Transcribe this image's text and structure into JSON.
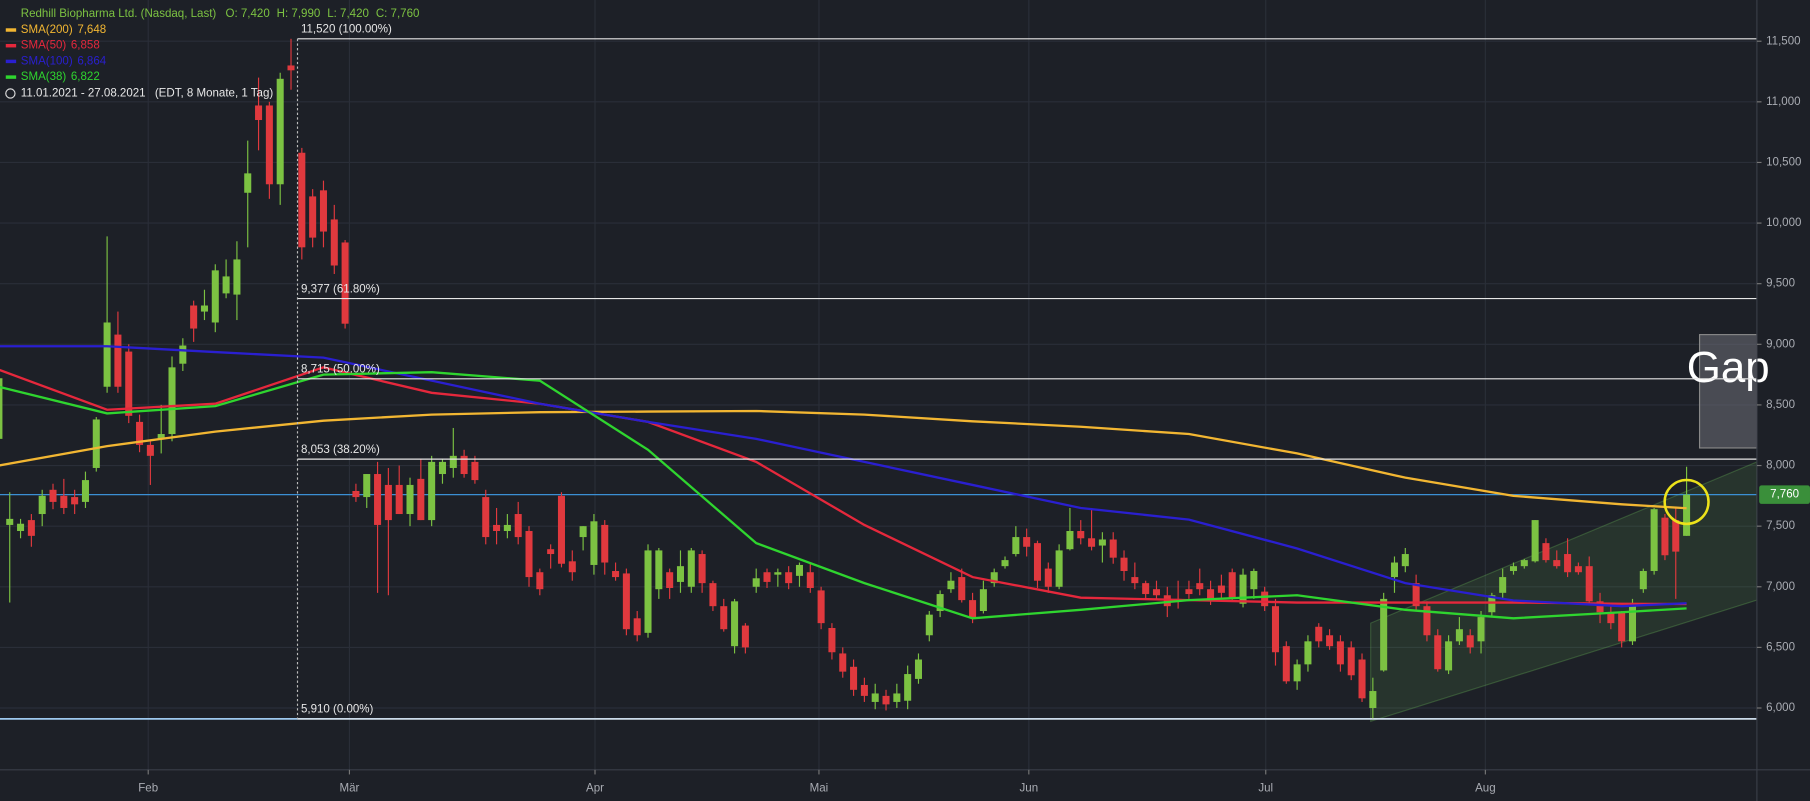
{
  "chart_data": {
    "type": "candlestick",
    "title": "Redhill Biopharma Ltd. (Nasdaq, Last)",
    "quote": [
      "O: 7,420",
      "H: 7,990",
      "L: 7,420",
      "C: 7,760"
    ],
    "date_range": "11.01.2021 - 27.08.2021",
    "range_note": "(EDT, 8 Monate, 1 Tag)",
    "up_color": "#7cc242",
    "down_color": "#e0393e",
    "categories": [
      null,
      null,
      null,
      null,
      null,
      null,
      null,
      null,
      null,
      null,
      null,
      null,
      null,
      null,
      null,
      null,
      null,
      null,
      null,
      null,
      null,
      null,
      null,
      null,
      null,
      null,
      null,
      null,
      null,
      null,
      null,
      null,
      null,
      null,
      null,
      null,
      null,
      null,
      null,
      null,
      null,
      null,
      null,
      null,
      null,
      null,
      null,
      null,
      null,
      null,
      null,
      null,
      null,
      null,
      null,
      null,
      null,
      null,
      null,
      null,
      null,
      null,
      null,
      null,
      null,
      null,
      null,
      null,
      null,
      null,
      null,
      null,
      null,
      null,
      null,
      null,
      null,
      null,
      null,
      null,
      null,
      null,
      null,
      null,
      null,
      null,
      null,
      null,
      null,
      null,
      null,
      null,
      null,
      null,
      null,
      null,
      null,
      null,
      null,
      null,
      null,
      null,
      null,
      null,
      null,
      null,
      null,
      null,
      null,
      null,
      null,
      null,
      null,
      null,
      null,
      null,
      null,
      null,
      null,
      null,
      null,
      null,
      null,
      null,
      null,
      null,
      null,
      null,
      null,
      null,
      null,
      null,
      null,
      null,
      null,
      null,
      null,
      null,
      null,
      null,
      null,
      null,
      null,
      null,
      null,
      null,
      null,
      null,
      null,
      null,
      null,
      null,
      null,
      null,
      null,
      null,
      null
    ],
    "open": [
      8220,
      7510,
      7460,
      7550,
      7600,
      7800,
      7750,
      7740,
      7700,
      7980,
      8650,
      9080,
      8940,
      8360,
      8170,
      8220,
      8260,
      8840,
      9320,
      9270,
      9180,
      9420,
      9410,
      10250,
      10970,
      10970,
      10320,
      11300,
      10580,
      10220,
      10270,
      10030,
      9840,
      7790,
      7740,
      7930,
      7840,
      7840,
      7600,
      7890,
      7550,
      7930,
      7980,
      8080,
      8030,
      7740,
      7510,
      7460,
      7600,
      7460,
      7120,
      7310,
      7750,
      7210,
      7410,
      7180,
      7510,
      7130,
      7110,
      6740,
      6620,
      6980,
      7120,
      7040,
      7000,
      7270,
      7030,
      6840,
      6510,
      6680,
      7000,
      7120,
      7100,
      7120,
      7090,
      7120,
      6970,
      6660,
      6450,
      6340,
      6190,
      6050,
      6100,
      6050,
      6060,
      6240,
      6600,
      6800,
      6980,
      7080,
      6890,
      6800,
      7030,
      7170,
      7270,
      7410,
      7360,
      7150,
      7000,
      7310,
      7460,
      7400,
      7340,
      7390,
      7240,
      7080,
      7030,
      6980,
      6930,
      6900,
      6980,
      7030,
      6980,
      7010,
      7120,
      6860,
      6980,
      6960,
      6840,
      6510,
      6220,
      6360,
      6670,
      6600,
      6550,
      6500,
      6400,
      6000,
      6310,
      7080,
      7170,
      7030,
      6840,
      6600,
      6310,
      6550,
      6600,
      6550,
      6790,
      6950,
      7130,
      7170,
      7210,
      7360,
      7220,
      7270,
      7170,
      7170,
      6880,
      6790,
      6790,
      6550,
      6980,
      7130,
      7570,
      7550,
      7420
    ],
    "high": [
      8780,
      7780,
      7560,
      7600,
      7800,
      7850,
      7890,
      7800,
      7950,
      8400,
      9890,
      9270,
      9000,
      8420,
      8200,
      8500,
      8900,
      9050,
      9360,
      9450,
      9660,
      9700,
      9850,
      10680,
      11200,
      11000,
      11240,
      11520,
      10620,
      10280,
      10350,
      10150,
      9860,
      7850,
      7930,
      8030,
      7980,
      8000,
      7900,
      8050,
      8080,
      8050,
      8310,
      8130,
      8080,
      7800,
      7650,
      7600,
      7700,
      7500,
      7150,
      7350,
      7780,
      7300,
      7500,
      7600,
      7550,
      7200,
      7150,
      6800,
      7350,
      7320,
      7150,
      7300,
      7320,
      7300,
      7050,
      6900,
      6900,
      6700,
      7150,
      7150,
      7150,
      7170,
      7200,
      7200,
      7000,
      6700,
      6500,
      6400,
      6250,
      6200,
      6150,
      6200,
      6350,
      6450,
      6800,
      6970,
      7120,
      7150,
      6950,
      7050,
      7150,
      7250,
      7500,
      7480,
      7380,
      7200,
      7350,
      7650,
      7550,
      7650,
      7450,
      7450,
      7300,
      7200,
      7050,
      7050,
      7000,
      7050,
      7050,
      7150,
      7050,
      7100,
      7150,
      7150,
      7150,
      7000,
      6900,
      6550,
      6400,
      6600,
      6700,
      6650,
      6600,
      6550,
      6450,
      6250,
      6950,
      7250,
      7320,
      7100,
      6880,
      6650,
      6600,
      6750,
      6650,
      6800,
      6950,
      7150,
      7200,
      7230,
      7550,
      7400,
      7300,
      7400,
      7200,
      7250,
      6950,
      6850,
      6800,
      6900,
      7150,
      7650,
      7600,
      7650,
      7990
    ],
    "low": [
      8150,
      6870,
      7400,
      7330,
      7500,
      7640,
      7600,
      7600,
      7650,
      7950,
      8600,
      8600,
      8350,
      8110,
      7840,
      8100,
      8200,
      8780,
      9020,
      9200,
      9100,
      9380,
      9200,
      9800,
      10600,
      10200,
      10150,
      11100,
      9700,
      9800,
      9800,
      9580,
      9130,
      7700,
      7650,
      6950,
      6930,
      7600,
      7500,
      7550,
      7500,
      7850,
      7900,
      7900,
      7850,
      7350,
      7350,
      7400,
      7350,
      7000,
      6930,
      7150,
      7160,
      7050,
      7300,
      7100,
      7100,
      7050,
      6600,
      6550,
      6580,
      6900,
      6900,
      6950,
      6950,
      6950,
      6800,
      6630,
      6450,
      6450,
      6950,
      6990,
      7000,
      6980,
      7000,
      6950,
      6650,
      6400,
      6250,
      6100,
      6050,
      5990,
      5980,
      6000,
      5990,
      6200,
      6550,
      6750,
      6950,
      6870,
      6700,
      6780,
      7000,
      7150,
      7250,
      7250,
      6990,
      6950,
      6980,
      7300,
      7350,
      7300,
      7200,
      7190,
      7050,
      6980,
      6900,
      6900,
      6750,
      6820,
      6900,
      6930,
      6850,
      6900,
      6880,
      6830,
      6900,
      6800,
      6350,
      6200,
      6150,
      6300,
      6500,
      6480,
      6300,
      6230,
      6050,
      5910,
      6300,
      6950,
      7120,
      6800,
      6550,
      6300,
      6280,
      6520,
      6450,
      6450,
      6750,
      6900,
      7100,
      7150,
      7200,
      7200,
      7150,
      7080,
      7100,
      6850,
      6700,
      6650,
      6500,
      6520,
      6950,
      7100,
      7220,
      6900,
      7420
    ],
    "close": [
      8720,
      7560,
      7520,
      7420,
      7750,
      7700,
      7650,
      7680,
      7880,
      8380,
      9180,
      8650,
      8410,
      8170,
      8080,
      8260,
      8810,
      8990,
      9130,
      9320,
      9610,
      9560,
      9700,
      10410,
      10850,
      10320,
      11190,
      11260,
      9800,
      9880,
      9930,
      9650,
      9170,
      7740,
      7930,
      7510,
      7550,
      7600,
      7840,
      7550,
      8030,
      8030,
      8080,
      7930,
      7880,
      7410,
      7460,
      7510,
      7410,
      7080,
      6980,
      7270,
      7190,
      7120,
      7500,
      7540,
      7200,
      7080,
      6650,
      6600,
      7300,
      7300,
      6990,
      7170,
      7300,
      7030,
      6840,
      6650,
      6880,
      6500,
      7070,
      7040,
      7120,
      7030,
      7180,
      6990,
      6700,
      6460,
      6300,
      6150,
      6100,
      6120,
      6030,
      6120,
      6280,
      6400,
      6770,
      6940,
      7050,
      6890,
      6740,
      6980,
      7120,
      7220,
      7410,
      7330,
      7050,
      7000,
      7300,
      7460,
      7400,
      7330,
      7390,
      7240,
      7130,
      7030,
      6940,
      6930,
      6840,
      6880,
      6940,
      6980,
      6890,
      6950,
      6900,
      7100,
      7130,
      6840,
      6460,
      6220,
      6360,
      6550,
      6550,
      6510,
      6360,
      6270,
      6080,
      6140,
      6900,
      7200,
      7270,
      6840,
      6600,
      6320,
      6550,
      6650,
      6500,
      6750,
      6930,
      7080,
      7170,
      7220,
      7550,
      7220,
      7170,
      7120,
      7120,
      6880,
      6790,
      6700,
      6550,
      6840,
      7130,
      7640,
      7260,
      7290,
      7760
    ],
    "series": [
      {
        "name": "SMA(200)",
        "legend_value": "7,648",
        "color": "#f2b632",
        "x": [
          0,
          10,
          20,
          30,
          40,
          50,
          60,
          70,
          80,
          90,
          100,
          110,
          120,
          130,
          140,
          150,
          156
        ],
        "values": [
          8000,
          8160,
          8280,
          8370,
          8420,
          8440,
          8445,
          8450,
          8420,
          8365,
          8320,
          8260,
          8100,
          7900,
          7750,
          7680,
          7648
        ]
      },
      {
        "name": "SMA(50)",
        "legend_value": "6,858",
        "color": "#e5283c",
        "x": [
          0,
          10,
          20,
          30,
          40,
          50,
          60,
          70,
          80,
          90,
          100,
          110,
          120,
          130,
          140,
          150,
          156
        ],
        "values": [
          8790,
          8460,
          8510,
          8810,
          8600,
          8510,
          8360,
          8030,
          7510,
          7080,
          6910,
          6890,
          6870,
          6870,
          6870,
          6860,
          6858
        ]
      },
      {
        "name": "SMA(100)",
        "legend_value": "6,864",
        "color": "#2a1fd0",
        "x": [
          0,
          10,
          20,
          30,
          40,
          50,
          60,
          70,
          80,
          90,
          100,
          110,
          120,
          130,
          140,
          150,
          156
        ],
        "values": [
          8984,
          8984,
          8936,
          8890,
          8700,
          8510,
          8360,
          8220,
          8030,
          7840,
          7650,
          7554,
          7316,
          7030,
          6887,
          6840,
          6864
        ]
      },
      {
        "name": "SMA(38)",
        "legend_value": "6,822",
        "color": "#2fd52f",
        "x": [
          0,
          10,
          20,
          30,
          40,
          50,
          60,
          70,
          80,
          90,
          100,
          110,
          120,
          130,
          140,
          150,
          156
        ],
        "values": [
          8650,
          8430,
          8490,
          8750,
          8770,
          8700,
          8130,
          7360,
          7030,
          6740,
          6810,
          6890,
          6930,
          6810,
          6740,
          6790,
          6822
        ]
      }
    ],
    "xlim": [
      0.1,
      162.5
    ],
    "xticks": [
      {
        "value": 13.8,
        "label": "Feb"
      },
      {
        "value": 32.4,
        "label": "Mär"
      },
      {
        "value": 55.1,
        "label": "Apr"
      },
      {
        "value": 75.8,
        "label": "Mai"
      },
      {
        "value": 95.2,
        "label": "Jun"
      },
      {
        "value": 117.1,
        "label": "Jul"
      },
      {
        "value": 137.4,
        "label": "Aug"
      }
    ],
    "ylim": [
      5490,
      11840
    ],
    "yticks": [
      {
        "value": 6000,
        "label": "6,000"
      },
      {
        "value": 6500,
        "label": "6,500"
      },
      {
        "value": 7000,
        "label": "7,000"
      },
      {
        "value": 7500,
        "label": "7,500"
      },
      {
        "value": 8000,
        "label": "8,000"
      },
      {
        "value": 8500,
        "label": "8,500"
      },
      {
        "value": 9000,
        "label": "9,000"
      },
      {
        "value": 9500,
        "label": "9,500"
      },
      {
        "value": 10000,
        "label": "10,000"
      },
      {
        "value": 10500,
        "label": "10,500"
      },
      {
        "value": 11000,
        "label": "11,000"
      },
      {
        "value": 11500,
        "label": "11,500"
      }
    ],
    "grid": true,
    "fib_x": 27.6,
    "fib_levels": [
      {
        "value": 11520,
        "label": "11,520 (100.00%)"
      },
      {
        "value": 9377,
        "label": "9,377 (61.80%)"
      },
      {
        "value": 8715,
        "label": "8,715 (50.00%)"
      },
      {
        "value": 8053,
        "label": "8,053 (38.20%)"
      },
      {
        "value": 5910,
        "label": "5,910 (0.00%)"
      }
    ],
    "support_line": 5910,
    "last_price": {
      "value": 7760,
      "label": "7,760"
    },
    "channel": {
      "x": [
        126.8,
        162.5
      ],
      "upper": [
        6700,
        8030
      ],
      "lower": [
        5890,
        6890
      ]
    },
    "gap_zone": {
      "label": "Gap",
      "x": [
        157.2,
        162.5
      ],
      "range": [
        8145,
        9080
      ]
    },
    "highlight": {
      "x": 156,
      "value": 7700
    }
  }
}
